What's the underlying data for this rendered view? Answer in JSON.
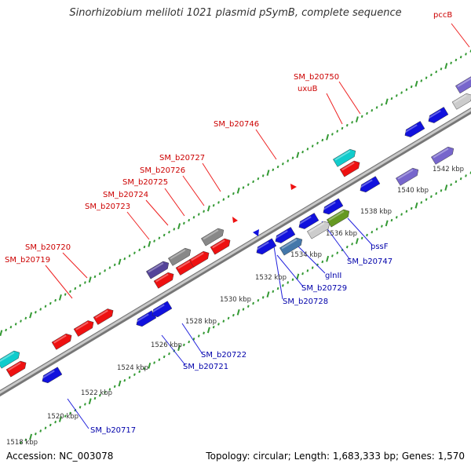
{
  "title": "Sinorhizobium meliloti 1021 plasmid pSymB, complete sequence",
  "footer": {
    "accession": "Accession: NC_003078",
    "summary": "Topology: circular; Length: 1,683,333 bp; Genes: 1,570"
  },
  "colors": {
    "forward": "#ee1111",
    "reverse": "#1111dd",
    "slate": "#554499",
    "grey": "#888888",
    "light_grey": "#cccccc",
    "cyan": "#11cccc",
    "steel": "#4477aa",
    "olive": "#669922",
    "lavender": "#7766cc",
    "backbone": "#999999",
    "tick": "#339933",
    "upper_label": "#cc0000",
    "lower_label": "#0000aa"
  },
  "kbp_labels": [
    "1518 kbp",
    "1520 kbp",
    "1522 kbp",
    "1524 kbp",
    "1526 kbp",
    "1528 kbp",
    "1530 kbp",
    "1532 kbp",
    "1534 kbp",
    "1536 kbp",
    "1538 kbp",
    "1540 kbp",
    "1542 kbp"
  ],
  "upper_labels": [
    "pccB",
    "SM_b20750",
    "uxuB",
    "SM_b20746",
    "SM_b20727",
    "SM_b20726",
    "SM_b20725",
    "SM_b20724",
    "SM_b20723",
    "SM_b20720",
    "SM_b20719"
  ],
  "lower_labels": [
    "pssF",
    "SM_b20747",
    "glnII",
    "SM_b20729",
    "SM_b20728",
    "SM_b20722",
    "SM_b20721",
    "SM_b20717"
  ],
  "genes": [
    {
      "color": "cyan",
      "row": "far_up"
    },
    {
      "color": "forward",
      "row": "near_up"
    },
    {
      "color": "reverse",
      "row": "near_down"
    },
    {
      "color": "forward",
      "row": "near_up"
    },
    {
      "color": "forward",
      "row": "near_up"
    },
    {
      "color": "forward",
      "row": "near_up"
    },
    {
      "color": "reverse",
      "row": "near_down"
    },
    {
      "color": "reverse",
      "row": "near_down"
    },
    {
      "color": "slate",
      "row": "far_up"
    },
    {
      "color": "forward",
      "row": "near_up"
    },
    {
      "color": "grey",
      "row": "far_up"
    },
    {
      "color": "forward",
      "row": "near_up"
    },
    {
      "color": "forward",
      "row": "near_up"
    },
    {
      "color": "grey",
      "row": "far_up"
    },
    {
      "color": "forward",
      "row": "near_up"
    },
    {
      "color": "reverse",
      "row": "near_down"
    },
    {
      "color": "reverse",
      "row": "near_down"
    },
    {
      "color": "steel",
      "row": "far_down"
    },
    {
      "color": "reverse",
      "row": "near_down"
    },
    {
      "color": "light_grey",
      "row": "far_down"
    },
    {
      "color": "reverse",
      "row": "near_down"
    },
    {
      "color": "olive",
      "row": "far_down"
    },
    {
      "color": "cyan",
      "row": "far_up"
    },
    {
      "color": "forward",
      "row": "near_up"
    },
    {
      "color": "reverse",
      "row": "near_down"
    },
    {
      "color": "lavender",
      "row": "far_down"
    },
    {
      "color": "reverse",
      "row": "near_up"
    },
    {
      "color": "lavender",
      "row": "far_down"
    },
    {
      "color": "reverse",
      "row": "near_up"
    },
    {
      "color": "light_grey",
      "row": "near_up"
    },
    {
      "color": "lavender",
      "row": "far_up"
    }
  ]
}
